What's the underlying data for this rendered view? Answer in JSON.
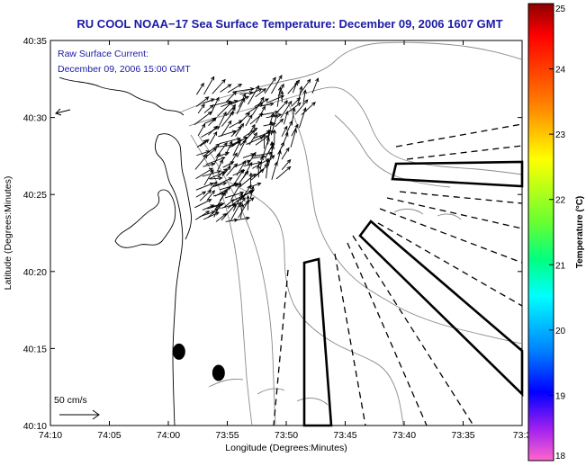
{
  "chart_data": {
    "type": "vector-map",
    "title": "RU COOL  NOAA−17  Sea Surface Temperature:  December 09, 2006 1607 GMT",
    "annotation_lines": [
      "Raw Surface Current:",
      "December 09, 2006 15:00 GMT"
    ],
    "xlabel": "Longitude (Degrees:Minutes)",
    "ylabel": "Latitude (Degrees:Minutes)",
    "x_ticks": [
      "74:10",
      "74:05",
      "74:00",
      "73:55",
      "73:50",
      "73:45",
      "73:40",
      "73:35",
      "73:3"
    ],
    "y_ticks": [
      "40:35",
      "40:30",
      "40:25",
      "40:20",
      "40:15",
      "40:10"
    ],
    "xlim": [
      -74.1667,
      -73.5
    ],
    "ylim": [
      40.1667,
      40.5833
    ],
    "scale_vector_label": "50 cm/s",
    "colorbar": {
      "label": "Temperature (°C)",
      "min": 18,
      "max": 25,
      "ticks": [
        "25",
        "24",
        "23",
        "22",
        "21",
        "20",
        "19",
        "18"
      ]
    },
    "markers": [
      {
        "lon": -73.985,
        "lat": 40.2466
      },
      {
        "lon": -73.929,
        "lat": 40.2236
      }
    ],
    "current_field": {
      "lon_range": [
        -73.96,
        -73.8
      ],
      "lat_range": [
        40.39,
        40.525
      ],
      "mean_direction_deg": 55,
      "mean_speed_cm_s": 30
    }
  }
}
